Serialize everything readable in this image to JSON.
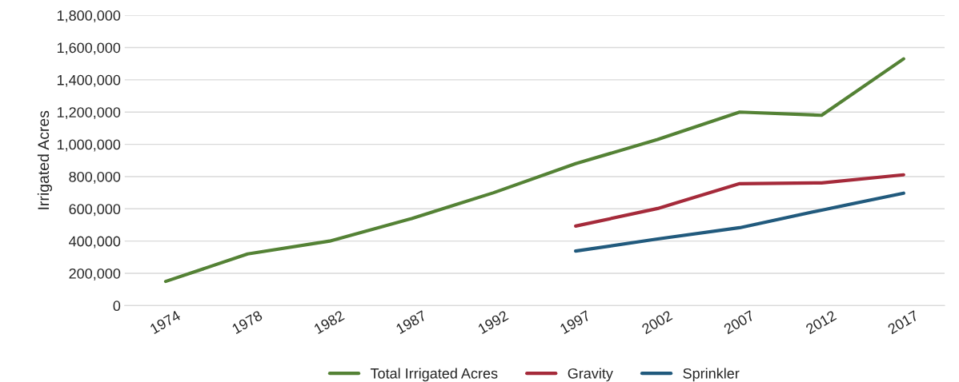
{
  "chart_data": {
    "type": "line",
    "ylabel": "Irrigated Acres",
    "categories": [
      "1974",
      "1978",
      "1982",
      "1987",
      "1992",
      "1997",
      "2002",
      "2007",
      "2012",
      "2017"
    ],
    "series": [
      {
        "name": "Total Irrigated Acres",
        "color": "#548235",
        "values": [
          150000,
          320000,
          400000,
          540000,
          700000,
          880000,
          1030000,
          1200000,
          1180000,
          1530000
        ]
      },
      {
        "name": "Gravity",
        "color": "#a52a3a",
        "values": [
          null,
          null,
          null,
          null,
          null,
          493000,
          602000,
          756000,
          761000,
          811000
        ]
      },
      {
        "name": "Sprinkler",
        "color": "#215a7d",
        "values": [
          null,
          null,
          null,
          null,
          null,
          338000,
          413000,
          483000,
          592000,
          697000
        ]
      }
    ],
    "ylim": [
      0,
      1800000
    ],
    "yticks": [
      {
        "value": 0,
        "label": "0"
      },
      {
        "value": 200000,
        "label": "200,000"
      },
      {
        "value": 400000,
        "label": "400,000"
      },
      {
        "value": 600000,
        "label": "600,000"
      },
      {
        "value": 800000,
        "label": "800,000"
      },
      {
        "value": 1000000,
        "label": "1,000,000"
      },
      {
        "value": 1200000,
        "label": "1,200,000"
      },
      {
        "value": 1400000,
        "label": "1,400,000"
      },
      {
        "value": 1600000,
        "label": "1,600,000"
      },
      {
        "value": 1800000,
        "label": "1,800,000"
      }
    ],
    "grid": "y",
    "legend": "bottom",
    "marker": "none",
    "line_style": "solid"
  }
}
